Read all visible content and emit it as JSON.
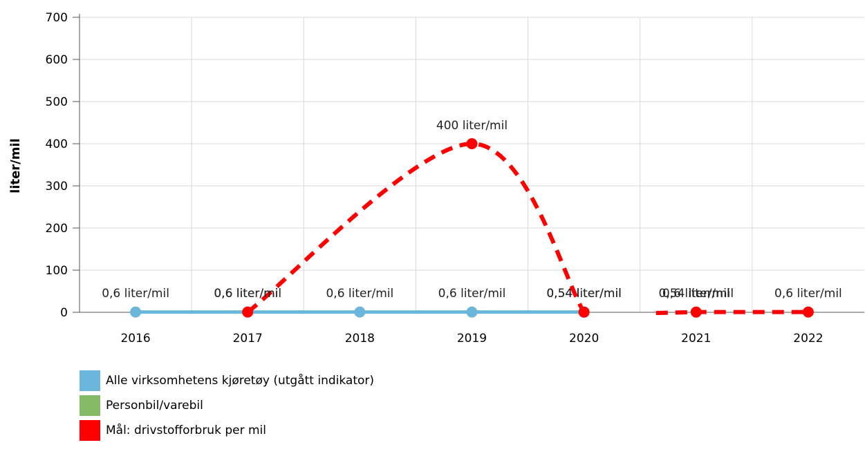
{
  "chart_data": {
    "type": "line",
    "title": "",
    "xlabel": "",
    "ylabel": "liter/mil",
    "categories": [
      "2016",
      "2017",
      "2018",
      "2019",
      "2020",
      "2021",
      "2022"
    ],
    "ylim": [
      0,
      700
    ],
    "yticks": [
      0,
      100,
      200,
      300,
      400,
      500,
      600,
      700
    ],
    "grid": true,
    "legend_position": "bottom-left",
    "series": [
      {
        "name": "Alle virksomhetens kjøretøy (utgått indikator)",
        "color": "#6bb7db",
        "values": [
          0.6,
          0.6,
          0.6,
          0.6,
          0.54,
          null,
          null
        ],
        "labels": [
          "0,6 liter/mil",
          "0,6 liter/mil",
          "0,6 liter/mil",
          "0,6 liter/mil",
          "0,54 liter/mil",
          "",
          ""
        ]
      },
      {
        "name": "Personbil/varebil",
        "color": "#86bb66",
        "values": [
          null,
          null,
          null,
          null,
          null,
          0.6,
          null
        ],
        "labels": [
          "",
          "",
          "",
          "",
          "",
          "0,6 liter/mil",
          ""
        ]
      },
      {
        "name": "Mål: drivstofforbruk per mil",
        "color": "#ff0000",
        "values": [
          null,
          0.6,
          null,
          400,
          0.54,
          0.54,
          0.6
        ],
        "labels": [
          "",
          "0,6 liter/mil",
          "",
          "400 liter/mil",
          "0,54 liter/mil",
          "0,54 liter/mil",
          "0,6 liter/mil"
        ]
      }
    ]
  }
}
